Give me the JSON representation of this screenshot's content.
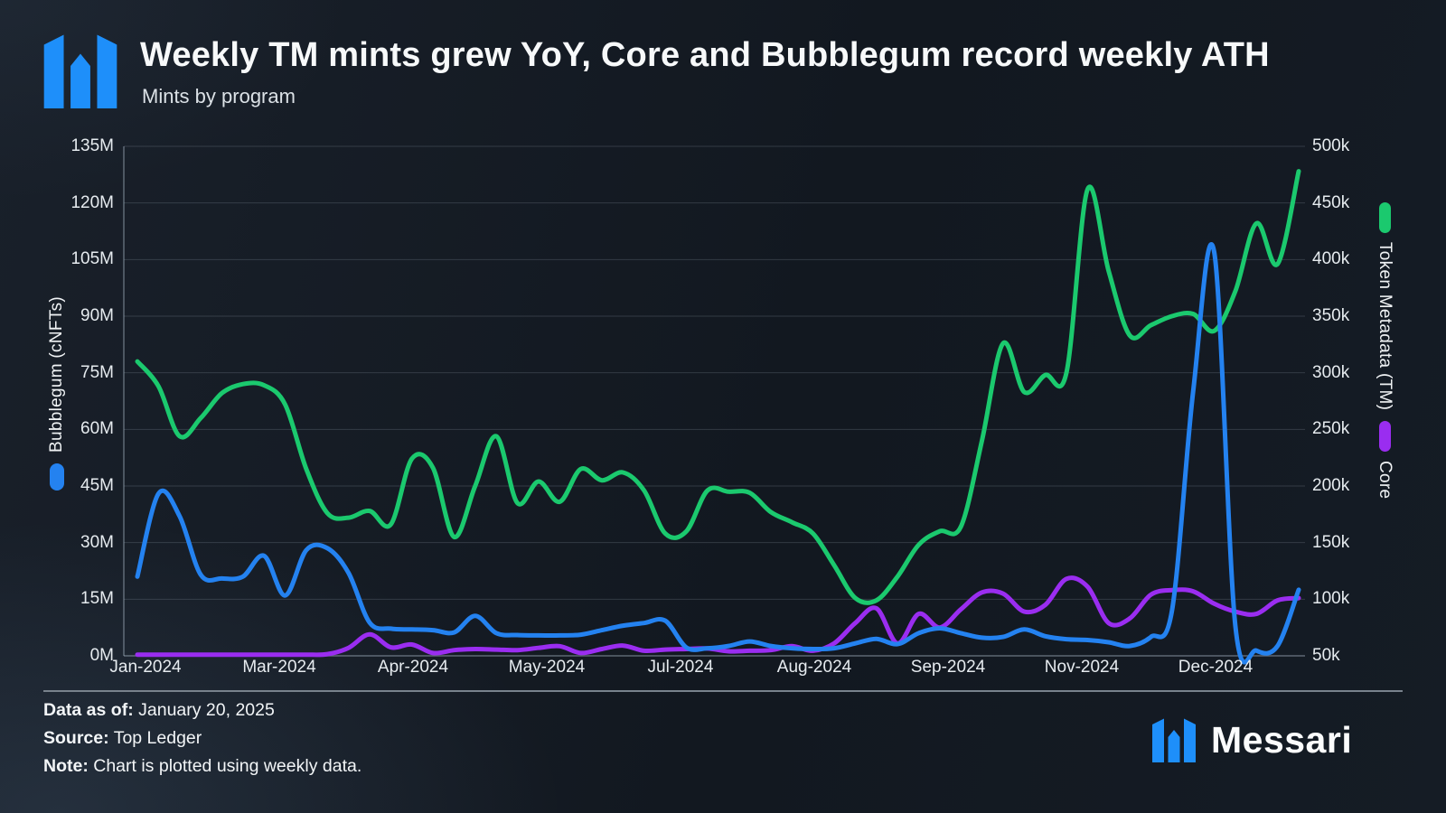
{
  "header": {
    "title": "Weekly TM mints grew YoY, Core and Bubblegum record weekly ATH",
    "subtitle": "Mints by program"
  },
  "brand": {
    "wordmark": "Messari",
    "logo_color": "#1e8ffa"
  },
  "footer": {
    "items": [
      {
        "label": "Data as of:",
        "value": "January 20, 2025"
      },
      {
        "label": "Source:",
        "value": "Top Ledger"
      },
      {
        "label": "Note:",
        "value": "Chart is plotted using weekly data."
      }
    ]
  },
  "colors": {
    "token_metadata": "#1bc96e",
    "bubblegum": "#2482f0",
    "core": "#9a2df0",
    "grid": "rgba(175,190,205,0.20)",
    "axis": "rgba(185,200,215,0.45)"
  },
  "chart_data": {
    "type": "line",
    "title": "Weekly TM mints grew YoY, Core and Bubblegum record weekly ATH",
    "subtitle": "Mints by program",
    "grid": true,
    "legend_position": "axis-labels",
    "x_tick_labels": [
      "Jan-2024",
      "Mar-2024",
      "Apr-2024",
      "May-2024",
      "Jul-2024",
      "Aug-2024",
      "Sep-2024",
      "Nov-2024",
      "Dec-2024"
    ],
    "left_axis": {
      "label": "Bubblegum (cNFTs)",
      "unit": "M",
      "min": 0,
      "max": 135,
      "tick_step": 15,
      "ticks": [
        "0M",
        "15M",
        "30M",
        "45M",
        "60M",
        "75M",
        "90M",
        "105M",
        "120M",
        "135M"
      ]
    },
    "right_axis": {
      "labels": [
        {
          "text": "Token Metadata (TM)",
          "series": "Token Metadata (TM)"
        },
        {
          "text": "Core",
          "series": "Core"
        }
      ],
      "unit": "k",
      "min": 50,
      "max": 500,
      "tick_step": 50,
      "ticks": [
        "50k",
        "100k",
        "150k",
        "200k",
        "250k",
        "300k",
        "350k",
        "400k",
        "450k",
        "500k"
      ]
    },
    "x_description": "56 weekly data points, Jan 2024 through Jan 20 2025",
    "series": [
      {
        "name": "Token Metadata (TM)",
        "axis": "right",
        "unit": "k (mints per week, thousands)",
        "color": "#1bc96e",
        "values": [
          310,
          288,
          244,
          260,
          282,
          290,
          289,
          272,
          215,
          176,
          172,
          178,
          166,
          224,
          216,
          155,
          200,
          244,
          185,
          204,
          186,
          215,
          205,
          212,
          196,
          158,
          160,
          196,
          195,
          194,
          177,
          168,
          158,
          130,
          101,
          99,
          120,
          148,
          160,
          164,
          240,
          326,
          283,
          298,
          300,
          462,
          390,
          333,
          342,
          350,
          352,
          337,
          372,
          432,
          396,
          478
        ]
      },
      {
        "name": "Core",
        "axis": "right",
        "unit": "k (mints per week, thousands)",
        "color": "#9a2df0",
        "values": [
          51,
          51,
          51,
          51,
          51,
          51,
          51,
          51,
          51,
          51.5,
          57,
          69,
          57.5,
          60,
          52.5,
          55,
          56,
          55.5,
          55,
          57,
          58.5,
          52.5,
          56,
          59,
          54.5,
          55.5,
          56,
          56.5,
          54,
          54.5,
          55,
          58.5,
          54.5,
          61,
          79,
          92,
          61,
          87,
          75,
          91,
          106,
          105,
          89,
          95,
          118,
          111,
          79,
          83,
          104,
          108,
          107,
          96,
          89,
          87,
          99,
          101
        ]
      },
      {
        "name": "Bubblegum (cNFTs)",
        "axis": "left",
        "unit": "M (cNFT mints per week, millions)",
        "color": "#2482f0",
        "values": [
          21,
          43,
          37,
          21.5,
          20.5,
          21,
          26.5,
          16,
          28,
          28.5,
          22,
          8.8,
          7.2,
          7,
          6.8,
          6.2,
          10.6,
          6,
          5.5,
          5.4,
          5.4,
          5.6,
          6.8,
          8,
          8.7,
          9.3,
          2.2,
          2,
          2.6,
          3.8,
          2.6,
          2,
          1.8,
          2,
          3.3,
          4.5,
          3.1,
          6,
          7.3,
          6,
          4.8,
          5,
          7,
          5.2,
          4.4,
          4.2,
          3.6,
          2.6,
          5,
          12,
          70,
          107,
          8,
          1.4,
          2.6,
          17.5
        ]
      }
    ]
  }
}
